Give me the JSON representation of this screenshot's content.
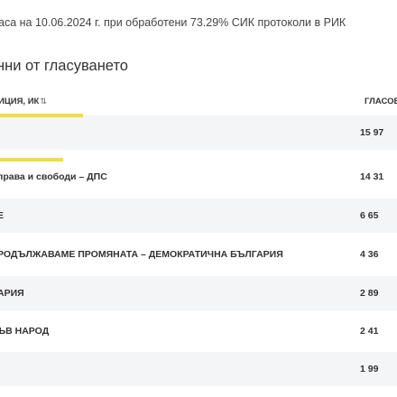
{
  "status": "аса на 10.06.2024 г. при обработени 73.29% СИК протоколи в РИК",
  "section_title": "нни от гласуването",
  "table": {
    "header_party": "ИЦИЯ, ИК",
    "header_sort_icon": "⇅",
    "header_votes": "ГЛАСОВ",
    "rows": [
      {
        "party": "",
        "votes": "15 97",
        "bar": 0.21
      },
      {
        "party": "права и свободи – ДПС",
        "votes": "14 31",
        "bar": 0.16
      },
      {
        "party": "Е",
        "votes": "6 65",
        "bar": null
      },
      {
        "party": "РОДЪЛЖАВАМЕ ПРОМЯНАТА – ДЕМОКРАТИЧНА БЪЛГАРИЯ",
        "votes": "4 36",
        "bar": null
      },
      {
        "party": "АРИЯ",
        "votes": "2 89",
        "bar": null
      },
      {
        "party": "ЪВ НАРОД",
        "votes": "2 41",
        "bar": null
      },
      {
        "party": "",
        "votes": "1 99",
        "bar": null
      }
    ]
  },
  "colors": {
    "bar": "#f1dc4a",
    "row_alt": "#f4f5f7"
  }
}
